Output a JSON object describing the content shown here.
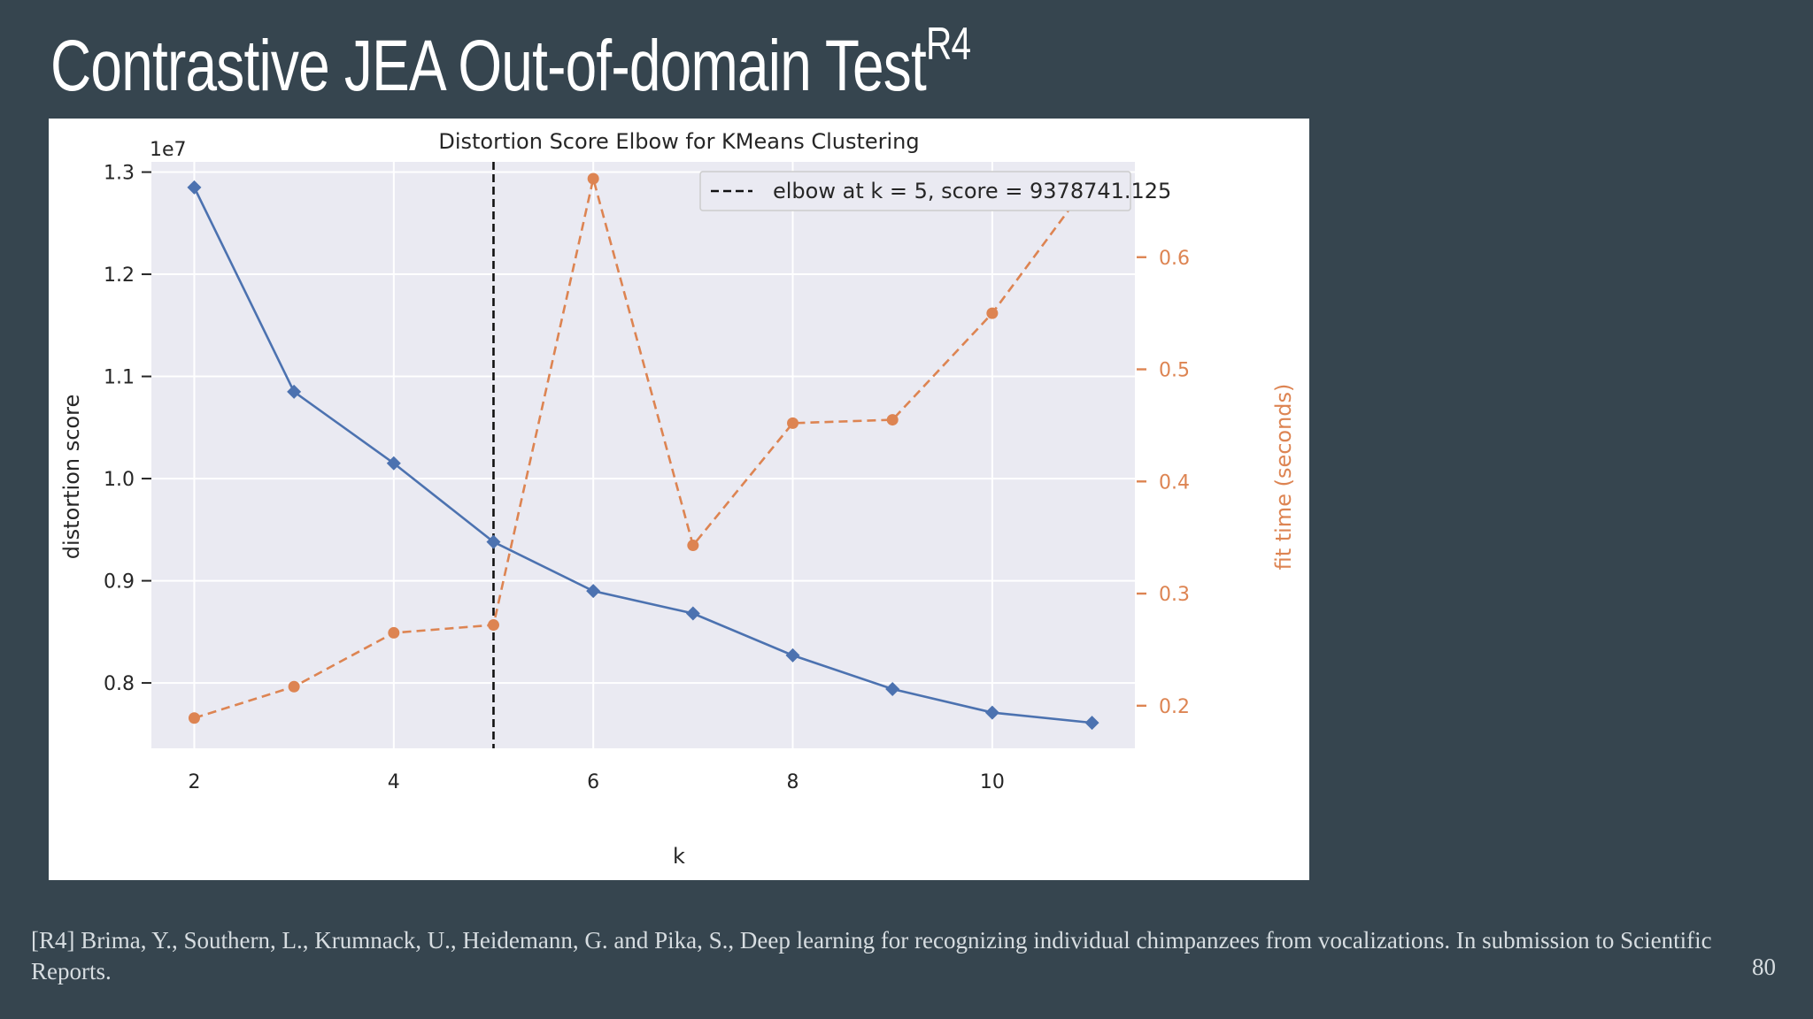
{
  "slide": {
    "title": "Contrastive JEA Out-of-domain Test",
    "title_sup": "R4",
    "footnote": "[R4] Brima, Y., Southern, L., Krumnack, U., Heidemann, G. and Pika, S., Deep learning for recognizing individual chimpanzees from vocalizations. In submission to Scientific Reports.",
    "page_number": "80"
  },
  "chart_data": {
    "type": "line",
    "title": "Distortion Score Elbow for KMeans Clustering",
    "xlabel": "k",
    "ylabel": "distortion score",
    "ylabel_right": "fit time (seconds)",
    "y_offset_label": "1e7",
    "x": [
      2,
      3,
      4,
      5,
      6,
      7,
      8,
      9,
      10,
      11
    ],
    "xlim": [
      1.57,
      11.43
    ],
    "ylim": [
      7.36,
      13.1
    ],
    "ylim_right": [
      0.162,
      0.685
    ],
    "x_ticks": [
      2,
      4,
      6,
      8,
      10
    ],
    "x_tick_labels": [
      "2",
      "4",
      "6",
      "8",
      "10"
    ],
    "y_ticks": [
      8.0,
      9.0,
      10.0,
      11.0,
      12.0,
      13.0
    ],
    "y_tick_labels": [
      "0.8",
      "0.9",
      "1.0",
      "1.1",
      "1.2",
      "1.3"
    ],
    "y_right_ticks": [
      0.2,
      0.3,
      0.4,
      0.5,
      0.6
    ],
    "y_right_tick_labels": [
      "0.2",
      "0.3",
      "0.4",
      "0.5",
      "0.6"
    ],
    "grid": true,
    "series": [
      {
        "axis": "left",
        "values": [
          12.85,
          10.85,
          10.15,
          9.38,
          8.9,
          8.68,
          8.27,
          7.94,
          7.71,
          7.61
        ],
        "color": "#4c72b0",
        "marker": "diamond",
        "dash": false
      },
      {
        "axis": "right",
        "values": [
          0.189,
          0.217,
          0.265,
          0.272,
          0.67,
          0.343,
          0.452,
          0.455,
          0.55,
          0.67
        ],
        "color": "#dd8452",
        "marker": "circle",
        "dash": true
      }
    ],
    "elbow": {
      "k": 5,
      "score": "9378741.125",
      "legend_text": "elbow at k = 5, score = 9378741.125",
      "legend_placement": "top-right"
    },
    "colors": {
      "plot_bg": "#eaeaf2",
      "grid": "#ffffff",
      "text": "#262626",
      "right_axis": "#dd8452"
    }
  }
}
